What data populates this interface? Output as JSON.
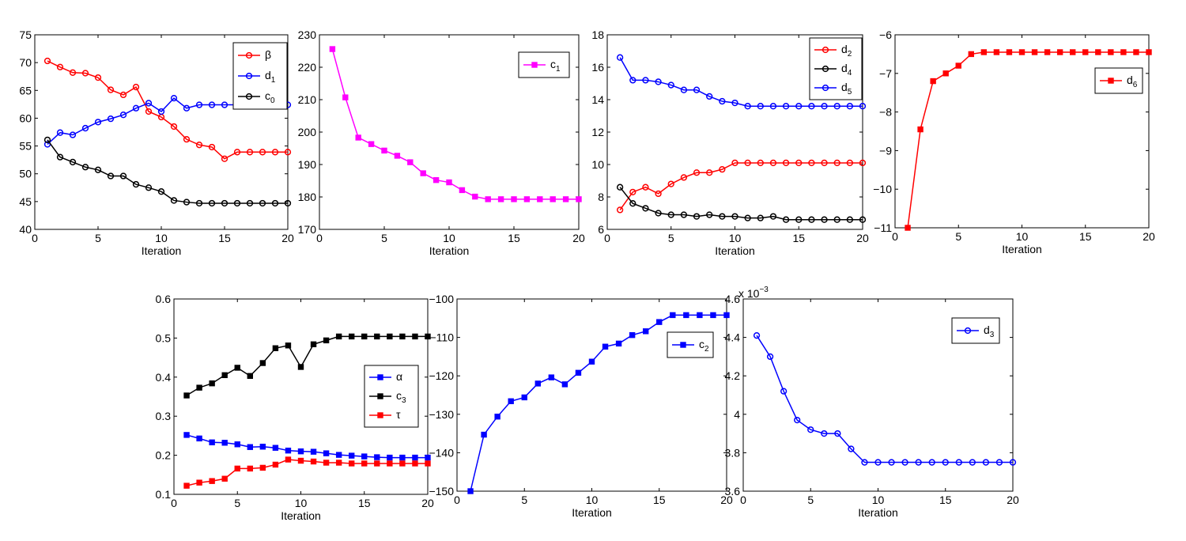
{
  "chart_data": [
    {
      "type": "line",
      "xlabel": "Iteration",
      "xlim": [
        0,
        20
      ],
      "ylim": [
        40,
        75
      ],
      "xticks": [
        0,
        5,
        10,
        15,
        20
      ],
      "yticks": [
        40,
        45,
        50,
        55,
        60,
        65,
        70,
        75
      ],
      "legend_position": "top-right",
      "x": [
        1,
        2,
        3,
        4,
        5,
        6,
        7,
        8,
        9,
        10,
        11,
        12,
        13,
        14,
        15,
        16,
        17,
        18,
        19,
        20
      ],
      "series": [
        {
          "name": "β",
          "sub": "",
          "color": "#ff0000",
          "marker": "circle",
          "values": [
            70.3,
            69.2,
            68.2,
            68.1,
            67.3,
            65.1,
            64.2,
            65.6,
            61.2,
            60.2,
            58.5,
            56.2,
            55.2,
            54.8,
            52.7,
            53.9,
            53.9,
            53.9,
            53.9,
            53.9
          ]
        },
        {
          "name": "d",
          "sub": "1",
          "color": "#0000ff",
          "marker": "circle",
          "values": [
            55.3,
            57.4,
            57.0,
            58.2,
            59.3,
            59.9,
            60.6,
            61.8,
            62.7,
            61.2,
            63.6,
            61.8,
            62.4,
            62.4,
            62.4,
            62.4,
            62.4,
            62.4,
            62.4,
            62.4
          ]
        },
        {
          "name": "c",
          "sub": "0",
          "color": "#000000",
          "marker": "circle",
          "values": [
            56.1,
            53.0,
            52.1,
            51.2,
            50.7,
            49.6,
            49.6,
            48.1,
            47.5,
            46.8,
            45.2,
            44.9,
            44.7,
            44.7,
            44.7,
            44.7,
            44.7,
            44.7,
            44.7,
            44.7
          ]
        }
      ]
    },
    {
      "type": "line",
      "xlabel": "Iteration",
      "xlim": [
        0,
        20
      ],
      "ylim": [
        170,
        230
      ],
      "xticks": [
        0,
        5,
        10,
        15,
        20
      ],
      "yticks": [
        170,
        180,
        190,
        200,
        210,
        220,
        230
      ],
      "legend_position": "top-right",
      "x": [
        1,
        2,
        3,
        4,
        5,
        6,
        7,
        8,
        9,
        10,
        11,
        12,
        13,
        14,
        15,
        16,
        17,
        18,
        19,
        20
      ],
      "series": [
        {
          "name": "c",
          "sub": "1",
          "color": "#ff00ff",
          "marker": "square",
          "values": [
            225.6,
            210.7,
            198.3,
            196.3,
            194.3,
            192.7,
            190.7,
            187.3,
            185.2,
            184.5,
            182.1,
            180.1,
            179.3,
            179.3,
            179.3,
            179.3,
            179.3,
            179.3,
            179.3,
            179.3
          ]
        }
      ]
    },
    {
      "type": "line",
      "xlabel": "Iteration",
      "xlim": [
        0,
        20
      ],
      "ylim": [
        6,
        18
      ],
      "xticks": [
        0,
        5,
        10,
        15,
        20
      ],
      "yticks": [
        6,
        8,
        10,
        12,
        14,
        16,
        18
      ],
      "legend_position": "top-right",
      "x": [
        1,
        2,
        3,
        4,
        5,
        6,
        7,
        8,
        9,
        10,
        11,
        12,
        13,
        14,
        15,
        16,
        17,
        18,
        19,
        20
      ],
      "series": [
        {
          "name": "d",
          "sub": "2",
          "color": "#ff0000",
          "marker": "circle",
          "values": [
            7.2,
            8.3,
            8.6,
            8.2,
            8.8,
            9.2,
            9.5,
            9.5,
            9.7,
            10.1,
            10.1,
            10.1,
            10.1,
            10.1,
            10.1,
            10.1,
            10.1,
            10.1,
            10.1,
            10.1
          ]
        },
        {
          "name": "d",
          "sub": "4",
          "color": "#000000",
          "marker": "circle",
          "values": [
            8.6,
            7.6,
            7.3,
            7.0,
            6.9,
            6.9,
            6.8,
            6.9,
            6.8,
            6.8,
            6.7,
            6.7,
            6.8,
            6.6,
            6.6,
            6.6,
            6.6,
            6.6,
            6.6,
            6.6
          ]
        },
        {
          "name": "d",
          "sub": "5",
          "color": "#0000ff",
          "marker": "circle",
          "values": [
            16.6,
            15.2,
            15.2,
            15.1,
            14.9,
            14.6,
            14.6,
            14.2,
            13.9,
            13.8,
            13.6,
            13.6,
            13.6,
            13.6,
            13.6,
            13.6,
            13.6,
            13.6,
            13.6,
            13.6
          ]
        }
      ]
    },
    {
      "type": "line",
      "xlabel": "Iteration",
      "xlim": [
        0,
        20
      ],
      "ylim": [
        -11,
        -6
      ],
      "xticks": [
        0,
        5,
        10,
        15,
        20
      ],
      "yticks": [
        -11,
        -10,
        -9,
        -8,
        -7,
        -6
      ],
      "legend_position": "top-right",
      "x": [
        1,
        2,
        3,
        4,
        5,
        6,
        7,
        8,
        9,
        10,
        11,
        12,
        13,
        14,
        15,
        16,
        17,
        18,
        19,
        20
      ],
      "series": [
        {
          "name": "d",
          "sub": "6",
          "color": "#ff0000",
          "marker": "square",
          "values": [
            -11.0,
            -8.45,
            -7.2,
            -7.0,
            -6.8,
            -6.5,
            -6.45,
            -6.45,
            -6.45,
            -6.45,
            -6.45,
            -6.45,
            -6.45,
            -6.45,
            -6.45,
            -6.45,
            -6.45,
            -6.45,
            -6.45,
            -6.45
          ]
        }
      ]
    },
    {
      "type": "line",
      "xlabel": "Iteration",
      "xlim": [
        0,
        20
      ],
      "ylim": [
        0.1,
        0.6
      ],
      "xticks": [
        0,
        5,
        10,
        15,
        20
      ],
      "yticks": [
        0.1,
        0.2,
        0.3,
        0.4,
        0.5,
        0.6
      ],
      "legend_position": "middle-right",
      "x": [
        1,
        2,
        3,
        4,
        5,
        6,
        7,
        8,
        9,
        10,
        11,
        12,
        13,
        14,
        15,
        16,
        17,
        18,
        19,
        20
      ],
      "series": [
        {
          "name": "α",
          "sub": "",
          "color": "#0000ff",
          "marker": "square",
          "values": [
            0.252,
            0.243,
            0.233,
            0.232,
            0.228,
            0.221,
            0.222,
            0.219,
            0.212,
            0.21,
            0.209,
            0.205,
            0.201,
            0.199,
            0.197,
            0.195,
            0.194,
            0.194,
            0.194,
            0.194
          ]
        },
        {
          "name": "c",
          "sub": "3",
          "color": "#000000",
          "marker": "square",
          "values": [
            0.353,
            0.373,
            0.384,
            0.405,
            0.424,
            0.403,
            0.436,
            0.474,
            0.481,
            0.426,
            0.484,
            0.494,
            0.504,
            0.504,
            0.504,
            0.504,
            0.504,
            0.504,
            0.504,
            0.504
          ]
        },
        {
          "name": "τ",
          "sub": "",
          "color": "#ff0000",
          "marker": "square",
          "values": [
            0.122,
            0.13,
            0.134,
            0.14,
            0.166,
            0.166,
            0.168,
            0.176,
            0.189,
            0.186,
            0.184,
            0.181,
            0.181,
            0.179,
            0.179,
            0.179,
            0.179,
            0.179,
            0.179,
            0.179
          ]
        }
      ]
    },
    {
      "type": "line",
      "xlabel": "Iteration",
      "xlim": [
        0,
        20
      ],
      "ylim": [
        -150,
        -100
      ],
      "xticks": [
        0,
        5,
        10,
        15,
        20
      ],
      "yticks": [
        -150,
        -140,
        -130,
        -120,
        -110,
        -100
      ],
      "legend_position": "top-right",
      "x": [
        1,
        2,
        3,
        4,
        5,
        6,
        7,
        8,
        9,
        10,
        11,
        12,
        13,
        14,
        15,
        16,
        17,
        18,
        19,
        20
      ],
      "series": [
        {
          "name": "c",
          "sub": "2",
          "color": "#0000ff",
          "marker": "square",
          "values": [
            -150.0,
            -135.3,
            -130.6,
            -126.6,
            -125.6,
            -122.0,
            -120.4,
            -122.2,
            -119.2,
            -116.3,
            -112.4,
            -111.6,
            -109.4,
            -108.4,
            -106.0,
            -104.2,
            -104.2,
            -104.2,
            -104.2,
            -104.2
          ]
        }
      ]
    },
    {
      "type": "line",
      "xlabel": "Iteration",
      "xlim": [
        0,
        20
      ],
      "ylim": [
        3.6,
        4.6
      ],
      "xticks": [
        0,
        5,
        10,
        15,
        20
      ],
      "yticks": [
        3.6,
        3.8,
        4,
        4.2,
        4.4,
        4.6
      ],
      "ytick_labels": [
        "3.6",
        "3.8",
        "4",
        "4.2",
        "4.4",
        "4.6"
      ],
      "y_multiplier": "x 10",
      "y_multiplier_exp": "−3",
      "legend_position": "top-right",
      "x": [
        1,
        2,
        3,
        4,
        5,
        6,
        7,
        8,
        9,
        10,
        11,
        12,
        13,
        14,
        15,
        16,
        17,
        18,
        19,
        20
      ],
      "series": [
        {
          "name": "d",
          "sub": "3",
          "color": "#0000ff",
          "marker": "circle",
          "values": [
            4.41,
            4.3,
            4.12,
            3.97,
            3.92,
            3.9,
            3.9,
            3.82,
            3.75,
            3.75,
            3.75,
            3.75,
            3.75,
            3.75,
            3.75,
            3.75,
            3.75,
            3.75,
            3.75,
            3.75
          ]
        }
      ]
    }
  ]
}
